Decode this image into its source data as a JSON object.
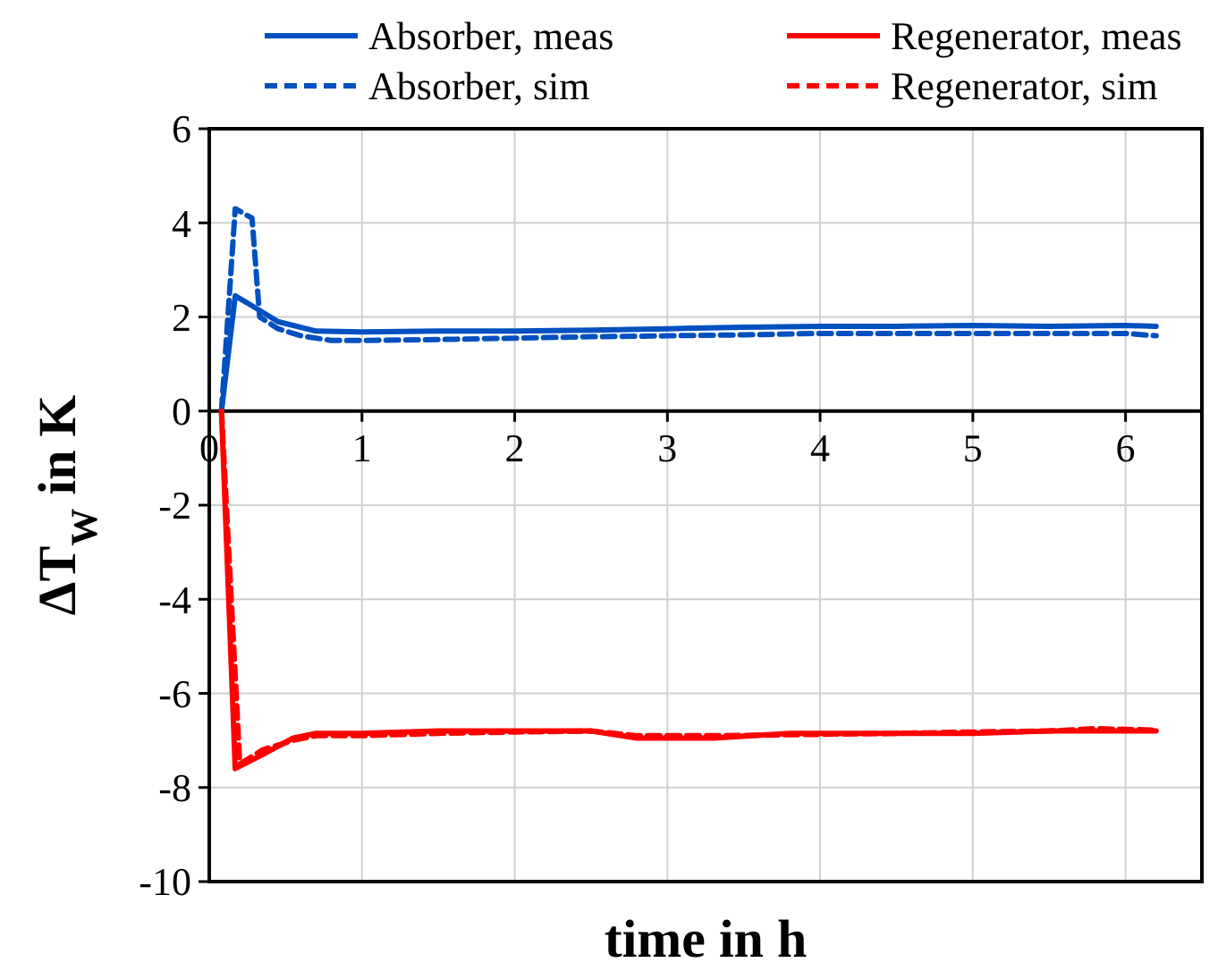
{
  "chart_data": {
    "type": "line",
    "xlabel": "time in h",
    "ylabel": "ΔT$_{W}$ in K",
    "xlim": [
      0,
      6.5
    ],
    "xticks": [
      0,
      1,
      2,
      3,
      4,
      5,
      6
    ],
    "ylim": [
      -10,
      6
    ],
    "yticks": [
      -10,
      -8,
      -6,
      -4,
      -2,
      0,
      2,
      4,
      6
    ],
    "grid": true,
    "legend": "top",
    "marker": "none",
    "series": [
      {
        "name": "Absorber, meas",
        "color": "#0050c0",
        "line_style": "solid",
        "x": [
          0.08,
          0.17,
          0.3,
          0.45,
          0.7,
          1.0,
          1.5,
          2.0,
          2.5,
          3.0,
          3.5,
          4.0,
          4.5,
          5.0,
          5.5,
          6.0,
          6.2
        ],
        "values": [
          0,
          2.45,
          2.2,
          1.9,
          1.7,
          1.68,
          1.7,
          1.7,
          1.72,
          1.75,
          1.78,
          1.8,
          1.8,
          1.82,
          1.8,
          1.82,
          1.8
        ]
      },
      {
        "name": "Regenerator, meas",
        "color": "#ff0000",
        "line_style": "solid",
        "x": [
          0.08,
          0.17,
          0.35,
          0.55,
          0.7,
          1.0,
          1.5,
          2.0,
          2.5,
          2.8,
          3.3,
          3.8,
          4.5,
          5.0,
          5.5,
          6.0,
          6.2
        ],
        "values": [
          0,
          -7.6,
          -7.3,
          -6.95,
          -6.85,
          -6.85,
          -6.8,
          -6.8,
          -6.8,
          -6.95,
          -6.95,
          -6.85,
          -6.85,
          -6.85,
          -6.8,
          -6.8,
          -6.8
        ]
      },
      {
        "name": "Absorber, sim",
        "color": "#0050c0",
        "line_style": "dashed",
        "x": [
          0.08,
          0.17,
          0.28,
          0.33,
          0.45,
          0.6,
          0.8,
          1.0,
          1.5,
          2.0,
          2.5,
          3.0,
          3.5,
          4.0,
          4.5,
          5.0,
          5.5,
          6.0,
          6.2
        ],
        "values": [
          0,
          4.3,
          4.1,
          2.0,
          1.75,
          1.6,
          1.5,
          1.5,
          1.52,
          1.55,
          1.58,
          1.6,
          1.62,
          1.65,
          1.65,
          1.65,
          1.65,
          1.65,
          1.6
        ]
      },
      {
        "name": "Regenerator, sim",
        "color": "#ff0000",
        "line_style": "dashed",
        "x": [
          0.08,
          0.2,
          0.35,
          0.55,
          0.7,
          1.0,
          1.5,
          2.0,
          2.5,
          2.8,
          3.3,
          3.8,
          4.5,
          5.0,
          5.5,
          5.8,
          6.2
        ],
        "values": [
          0,
          -7.5,
          -7.2,
          -7.0,
          -6.9,
          -6.9,
          -6.85,
          -6.82,
          -6.8,
          -6.9,
          -6.9,
          -6.88,
          -6.85,
          -6.82,
          -6.8,
          -6.75,
          -6.78
        ]
      }
    ]
  }
}
